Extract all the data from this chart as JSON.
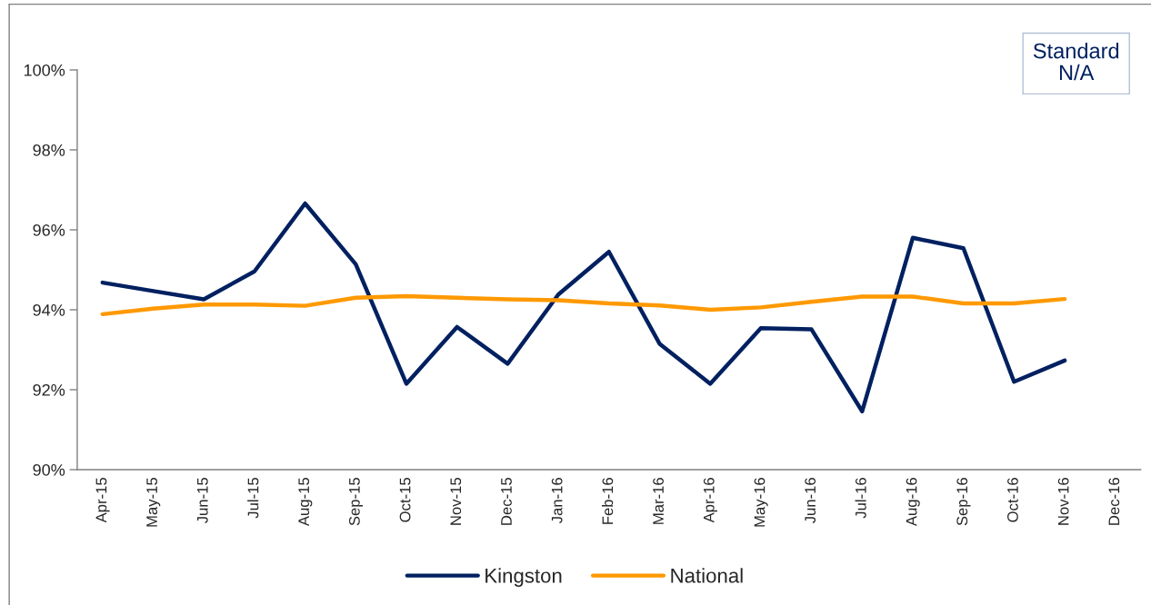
{
  "chart_data": {
    "type": "line",
    "categories": [
      "Apr-15",
      "May-15",
      "Jun-15",
      "Jul-15",
      "Aug-15",
      "Sep-15",
      "Oct-15",
      "Nov-15",
      "Dec-15",
      "Jan-16",
      "Feb-16",
      "Mar-16",
      "Apr-16",
      "May-16",
      "Jun-16",
      "Jul-16",
      "Aug-16",
      "Sep-16",
      "Oct-16",
      "Nov-16",
      "Dec-16"
    ],
    "series": [
      {
        "name": "Kingston",
        "color": "#002060",
        "values": [
          94.68,
          94.47,
          94.26,
          94.96,
          96.66,
          95.14,
          92.15,
          93.57,
          92.65,
          94.38,
          95.45,
          93.15,
          92.15,
          93.54,
          93.51,
          91.46,
          95.8,
          95.54,
          92.2,
          92.73,
          null
        ]
      },
      {
        "name": "National",
        "color": "#ff9900",
        "values": [
          93.89,
          94.03,
          94.13,
          94.13,
          94.1,
          94.3,
          94.34,
          94.3,
          94.26,
          94.24,
          94.16,
          94.11,
          94.0,
          94.06,
          94.2,
          94.33,
          94.33,
          94.16,
          94.16,
          94.27,
          null
        ]
      }
    ],
    "ylim": [
      90,
      100
    ],
    "yticks": [
      {
        "value": 90,
        "label": "90%"
      },
      {
        "value": 92,
        "label": "92%"
      },
      {
        "value": 94,
        "label": "94%"
      },
      {
        "value": 96,
        "label": "96%"
      },
      {
        "value": 98,
        "label": "98%"
      },
      {
        "value": 100,
        "label": "100%"
      }
    ],
    "annotations": [
      "Standard\nN/A"
    ],
    "legend": "bottom",
    "grid": false,
    "line_style": "solid"
  }
}
